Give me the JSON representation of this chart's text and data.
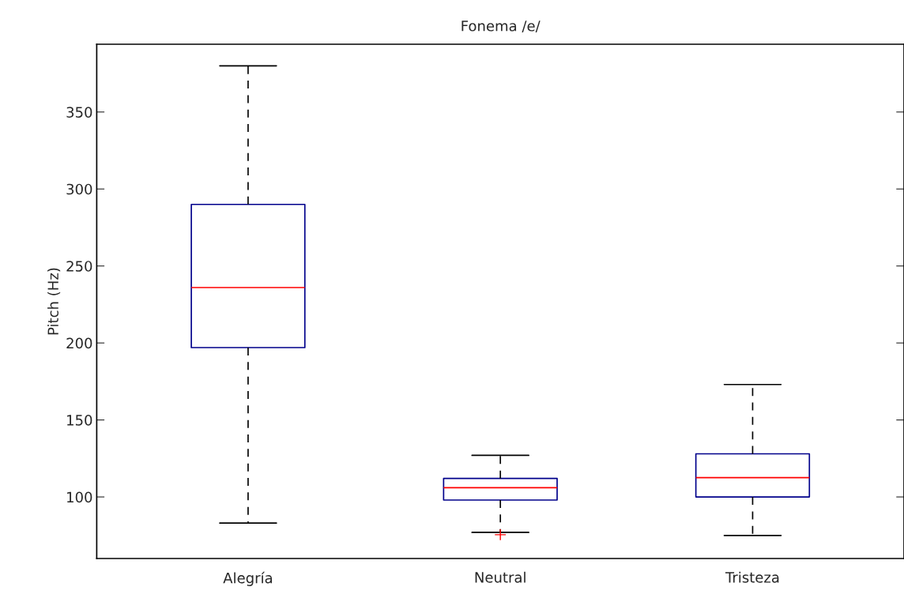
{
  "chart_data": {
    "type": "box",
    "title": "Fonema /e/",
    "ylabel": "Pitch (Hz)",
    "categories": [
      "Alegría",
      "Neutral",
      "Tristeza"
    ],
    "series": [
      {
        "color": "#00008b",
        "boxes": [
          {
            "low": 83,
            "q1": 197,
            "median": 236,
            "q3": 290,
            "high": 380
          },
          {
            "low": 77,
            "q1": 98,
            "median": 106,
            "q3": 112,
            "high": 127,
            "outliers": [
              75.5
            ]
          },
          {
            "low": 75,
            "q1": 100,
            "median": 112.5,
            "q3": 128,
            "high": 173
          }
        ]
      }
    ],
    "ylim": [
      60,
      394
    ],
    "yticks": [
      100,
      150,
      200,
      250,
      300,
      350
    ],
    "grid": false
  }
}
